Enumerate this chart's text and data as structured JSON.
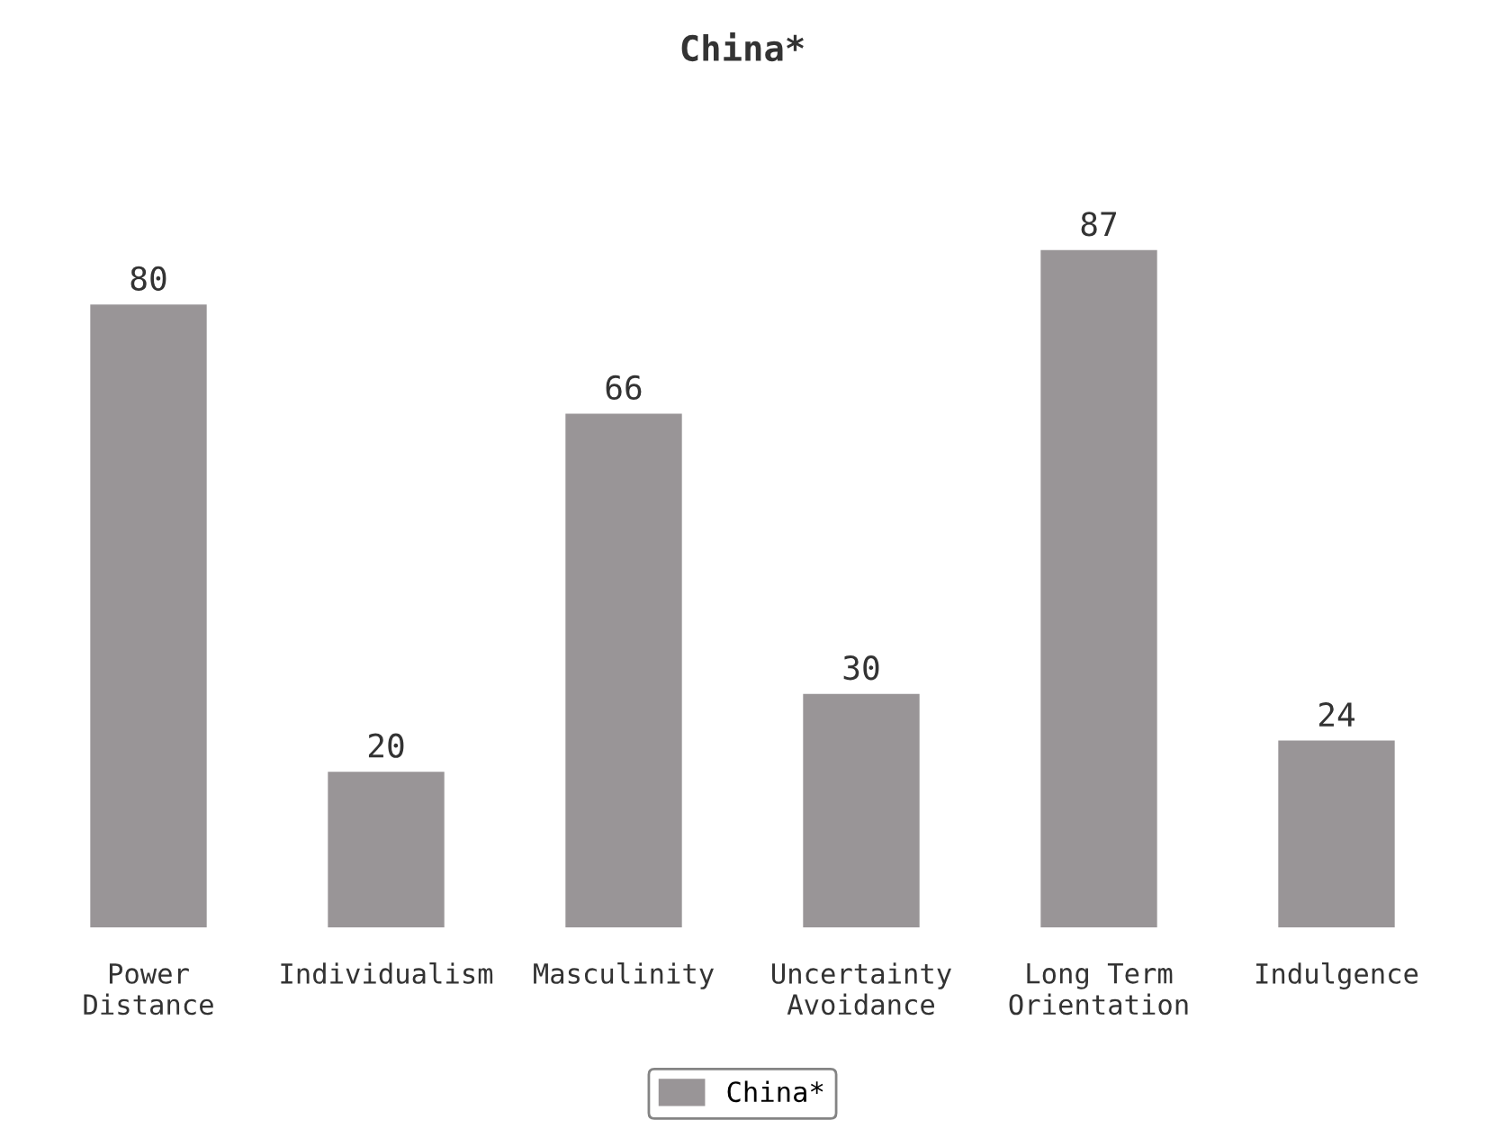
{
  "chart_data": {
    "type": "bar",
    "title": "China*",
    "categories": [
      "Power\nDistance",
      "Individualism",
      "Masculinity",
      "Uncertainty\nAvoidance",
      "Long Term\nOrientation",
      "Indulgence"
    ],
    "series": [
      {
        "name": "China*",
        "color": "#999597",
        "values": [
          80,
          20,
          66,
          30,
          87,
          24
        ]
      }
    ],
    "data_labels": true,
    "legend": "bottom",
    "grid": false,
    "tick_labels": "x"
  }
}
